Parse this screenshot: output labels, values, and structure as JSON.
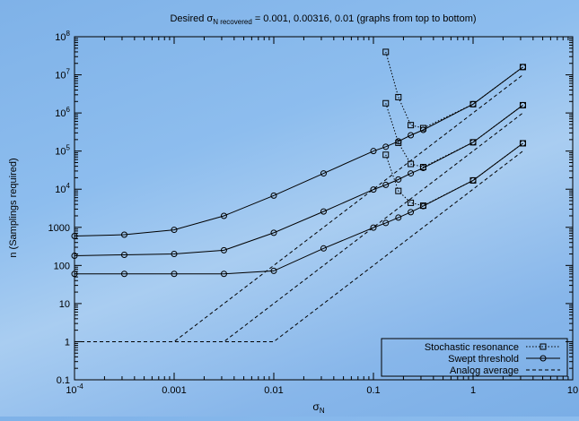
{
  "chart_data": {
    "type": "line",
    "title_prefix": "Desired σ",
    "title_subscript": "N recovered",
    "title_suffix": " = 0.001, 0.00316, 0.01 (graphs from top to bottom)",
    "xlabel_main": "σ",
    "xlabel_sub": "N",
    "ylabel": "n (Samplings required)",
    "x_scale": "log",
    "y_scale": "log",
    "xlim": [
      0.0001,
      10
    ],
    "ylim": [
      0.1,
      100000000
    ],
    "grid": false,
    "legend_position": "bottom-right",
    "x_ticks": [
      {
        "value": 0.0001,
        "base": "10",
        "exp": "-4"
      },
      {
        "value": 0.001,
        "base": "0.001",
        "exp": ""
      },
      {
        "value": 0.01,
        "base": "0.01",
        "exp": ""
      },
      {
        "value": 0.1,
        "base": "0.1",
        "exp": ""
      },
      {
        "value": 1,
        "base": "1",
        "exp": ""
      },
      {
        "value": 10,
        "base": "10",
        "exp": ""
      }
    ],
    "y_ticks": [
      {
        "value": 0.1,
        "base": "0.1",
        "exp": ""
      },
      {
        "value": 1,
        "base": "1",
        "exp": ""
      },
      {
        "value": 10,
        "base": "10",
        "exp": ""
      },
      {
        "value": 100,
        "base": "100",
        "exp": ""
      },
      {
        "value": 1000,
        "base": "1000",
        "exp": ""
      },
      {
        "value": 10000,
        "base": "10",
        "exp": "4"
      },
      {
        "value": 100000,
        "base": "10",
        "exp": "5"
      },
      {
        "value": 1000000,
        "base": "10",
        "exp": "6"
      },
      {
        "value": 10000000,
        "base": "10",
        "exp": "7"
      },
      {
        "value": 100000000,
        "base": "10",
        "exp": "8"
      }
    ],
    "legend": [
      {
        "label": "Stochastic resonance",
        "style": "sr"
      },
      {
        "label": "Swept threshold",
        "style": "st"
      },
      {
        "label": "Analog average",
        "style": "aa"
      }
    ],
    "series": [
      {
        "group": "Stochastic resonance",
        "style": "sr",
        "x": [
          0.133,
          0.178,
          0.237,
          0.316,
          1,
          3.16
        ],
        "y": [
          40000000,
          2600000,
          480000,
          400000,
          1700000,
          16000000
        ]
      },
      {
        "group": "Stochastic resonance",
        "style": "sr",
        "x": [
          0.133,
          0.178,
          0.237,
          0.316,
          1,
          3.16
        ],
        "y": [
          1800000,
          165000,
          46000,
          38000,
          170000,
          1600000
        ]
      },
      {
        "group": "Stochastic resonance",
        "style": "sr",
        "x": [
          0.133,
          0.178,
          0.237,
          0.316,
          1,
          3.16
        ],
        "y": [
          80000,
          9000,
          4400,
          3700,
          17000,
          160000
        ]
      },
      {
        "group": "Swept threshold",
        "style": "st",
        "x": [
          0.0001,
          0.000316,
          0.001,
          0.00316,
          0.01,
          0.0316,
          0.1,
          0.133,
          0.178,
          0.237,
          0.316,
          1,
          3.16
        ],
        "y": [
          590,
          640,
          860,
          2000,
          6800,
          26000,
          100000,
          130000,
          180000,
          260000,
          360000,
          1700000,
          16000000
        ]
      },
      {
        "group": "Swept threshold",
        "style": "st",
        "x": [
          0.0001,
          0.000316,
          0.001,
          0.00316,
          0.01,
          0.0316,
          0.1,
          0.133,
          0.178,
          0.237,
          0.316,
          1,
          3.16
        ],
        "y": [
          180,
          190,
          200,
          250,
          720,
          2600,
          9800,
          13000,
          18000,
          26000,
          36000,
          170000,
          1600000
        ]
      },
      {
        "group": "Swept threshold",
        "style": "st",
        "x": [
          0.0001,
          0.000316,
          0.001,
          0.00316,
          0.01,
          0.0316,
          0.1,
          0.133,
          0.178,
          0.237,
          0.316,
          1,
          3.16
        ],
        "y": [
          60,
          60,
          60,
          60,
          72,
          280,
          980,
          1300,
          1800,
          2500,
          3600,
          17000,
          160000
        ]
      },
      {
        "group": "Analog average",
        "style": "aa",
        "x": [
          0.0001,
          0.001,
          3.16
        ],
        "y": [
          1,
          1,
          10000000
        ]
      },
      {
        "group": "Analog average",
        "style": "aa",
        "x": [
          0.0001,
          0.00316,
          3.16
        ],
        "y": [
          1,
          1,
          1000000
        ]
      },
      {
        "group": "Analog average",
        "style": "aa",
        "x": [
          0.0001,
          0.01,
          3.16
        ],
        "y": [
          1,
          1,
          100000
        ]
      }
    ]
  }
}
